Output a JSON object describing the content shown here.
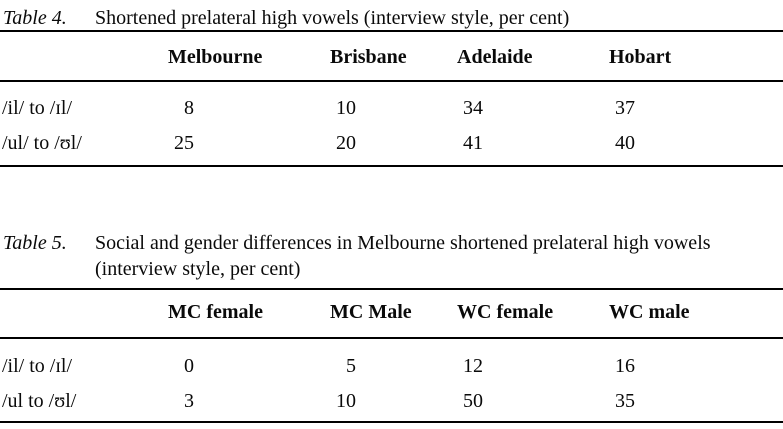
{
  "page": {
    "background": "#ffffff",
    "text_color": "#0a0a0a",
    "rule_color": "#000000"
  },
  "tables": [
    {
      "label": "Table 4.",
      "caption": "Shortened prelateral high vowels (interview style, per cent)",
      "columns": [
        "Melbourne",
        "Brisbane",
        "Adelaide",
        "Hobart"
      ],
      "rows": [
        {
          "label": "/il/ to /ɪl/",
          "values": [
            "8",
            "10",
            "34",
            "37"
          ]
        },
        {
          "label": "/ul/ to /ʊl/",
          "values": [
            "25",
            "20",
            "41",
            "40"
          ]
        }
      ]
    },
    {
      "label": "Table 5.",
      "caption": "Social and gender differences in Melbourne shortened prelateral high vowels",
      "caption_line2": "(interview style, per cent)",
      "columns": [
        "MC female",
        "MC Male",
        "WC female",
        "WC male"
      ],
      "rows": [
        {
          "label": "/il/ to /ɪl/",
          "values": [
            "0",
            "5",
            "12",
            "16"
          ]
        },
        {
          "label": "/ul to /ʊl/",
          "values": [
            "3",
            "10",
            "50",
            "35"
          ]
        }
      ]
    }
  ],
  "chart_data": [
    {
      "type": "table",
      "title": "Table 4. Shortened prelateral high vowels (interview style, per cent)",
      "categories": [
        "Melbourne",
        "Brisbane",
        "Adelaide",
        "Hobart"
      ],
      "series": [
        {
          "name": "/il/ to /ɪl/",
          "values": [
            8,
            10,
            34,
            37
          ]
        },
        {
          "name": "/ul/ to /ʊl/",
          "values": [
            25,
            20,
            41,
            40
          ]
        }
      ]
    },
    {
      "type": "table",
      "title": "Table 5. Social and gender differences in Melbourne shortened prelateral high vowels (interview style, per cent)",
      "categories": [
        "MC female",
        "MC Male",
        "WC female",
        "WC male"
      ],
      "series": [
        {
          "name": "/il/ to /ɪl/",
          "values": [
            0,
            5,
            12,
            16
          ]
        },
        {
          "name": "/ul to /ʊl/",
          "values": [
            3,
            10,
            50,
            35
          ]
        }
      ]
    }
  ]
}
